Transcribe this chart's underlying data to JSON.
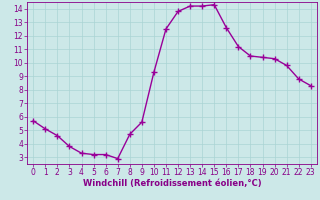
{
  "x": [
    0,
    1,
    2,
    3,
    4,
    5,
    6,
    7,
    8,
    9,
    10,
    11,
    12,
    13,
    14,
    15,
    16,
    17,
    18,
    19,
    20,
    21,
    22,
    23
  ],
  "y": [
    5.7,
    5.1,
    4.6,
    3.8,
    3.3,
    3.2,
    3.2,
    2.9,
    4.7,
    5.6,
    9.3,
    12.5,
    13.8,
    14.2,
    14.2,
    14.3,
    12.6,
    11.2,
    10.5,
    10.4,
    10.3,
    9.8,
    8.8,
    8.3
  ],
  "line_color": "#990099",
  "marker": "+",
  "marker_size": 4,
  "bg_color": "#cce8e8",
  "grid_color": "#aad4d4",
  "xlabel": "Windchill (Refroidissement éolien,°C)",
  "xlim": [
    -0.5,
    23.5
  ],
  "ylim": [
    2.5,
    14.5
  ],
  "xticks": [
    0,
    1,
    2,
    3,
    4,
    5,
    6,
    7,
    8,
    9,
    10,
    11,
    12,
    13,
    14,
    15,
    16,
    17,
    18,
    19,
    20,
    21,
    22,
    23
  ],
  "yticks": [
    3,
    4,
    5,
    6,
    7,
    8,
    9,
    10,
    11,
    12,
    13,
    14
  ],
  "tick_color": "#880088",
  "label_color": "#880088",
  "tick_fontsize": 5.5,
  "xlabel_fontsize": 6.0,
  "line_width": 1.0,
  "marker_linewidth": 1.0
}
